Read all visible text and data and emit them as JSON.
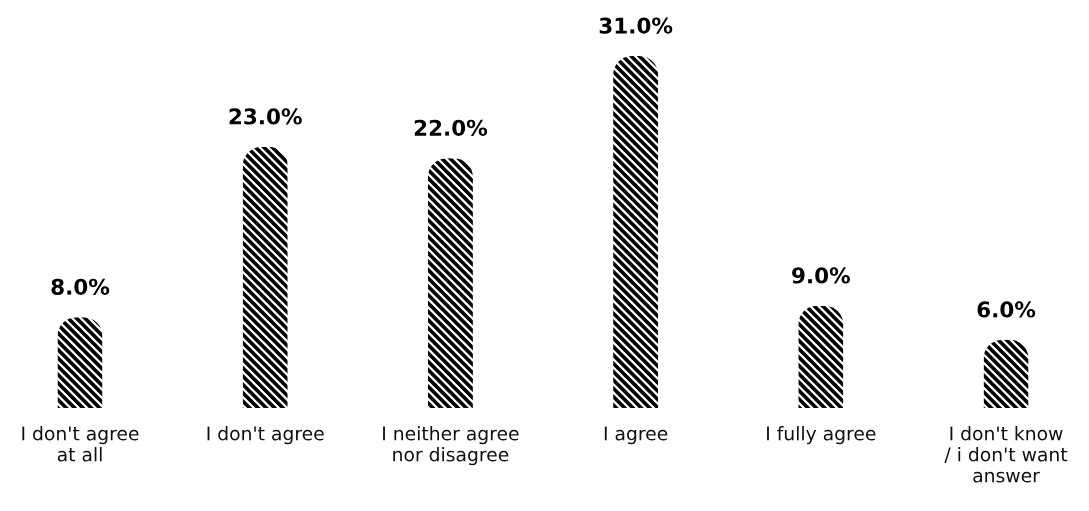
{
  "chart_data": {
    "type": "bar",
    "categories": [
      "I don't agree\nat all",
      "I don't agree",
      "I neither agree\nnor disagree",
      "I agree",
      "I fully agree",
      "I don't know\n/ i don't want\nanswer"
    ],
    "values": [
      8,
      23,
      22,
      31,
      9,
      6
    ],
    "value_labels": [
      "8.0%",
      "23.0%",
      "22.0%",
      "31.0%",
      "9.0%",
      "6.0%"
    ],
    "color": "#000000",
    "tick_labels": "x"
  }
}
